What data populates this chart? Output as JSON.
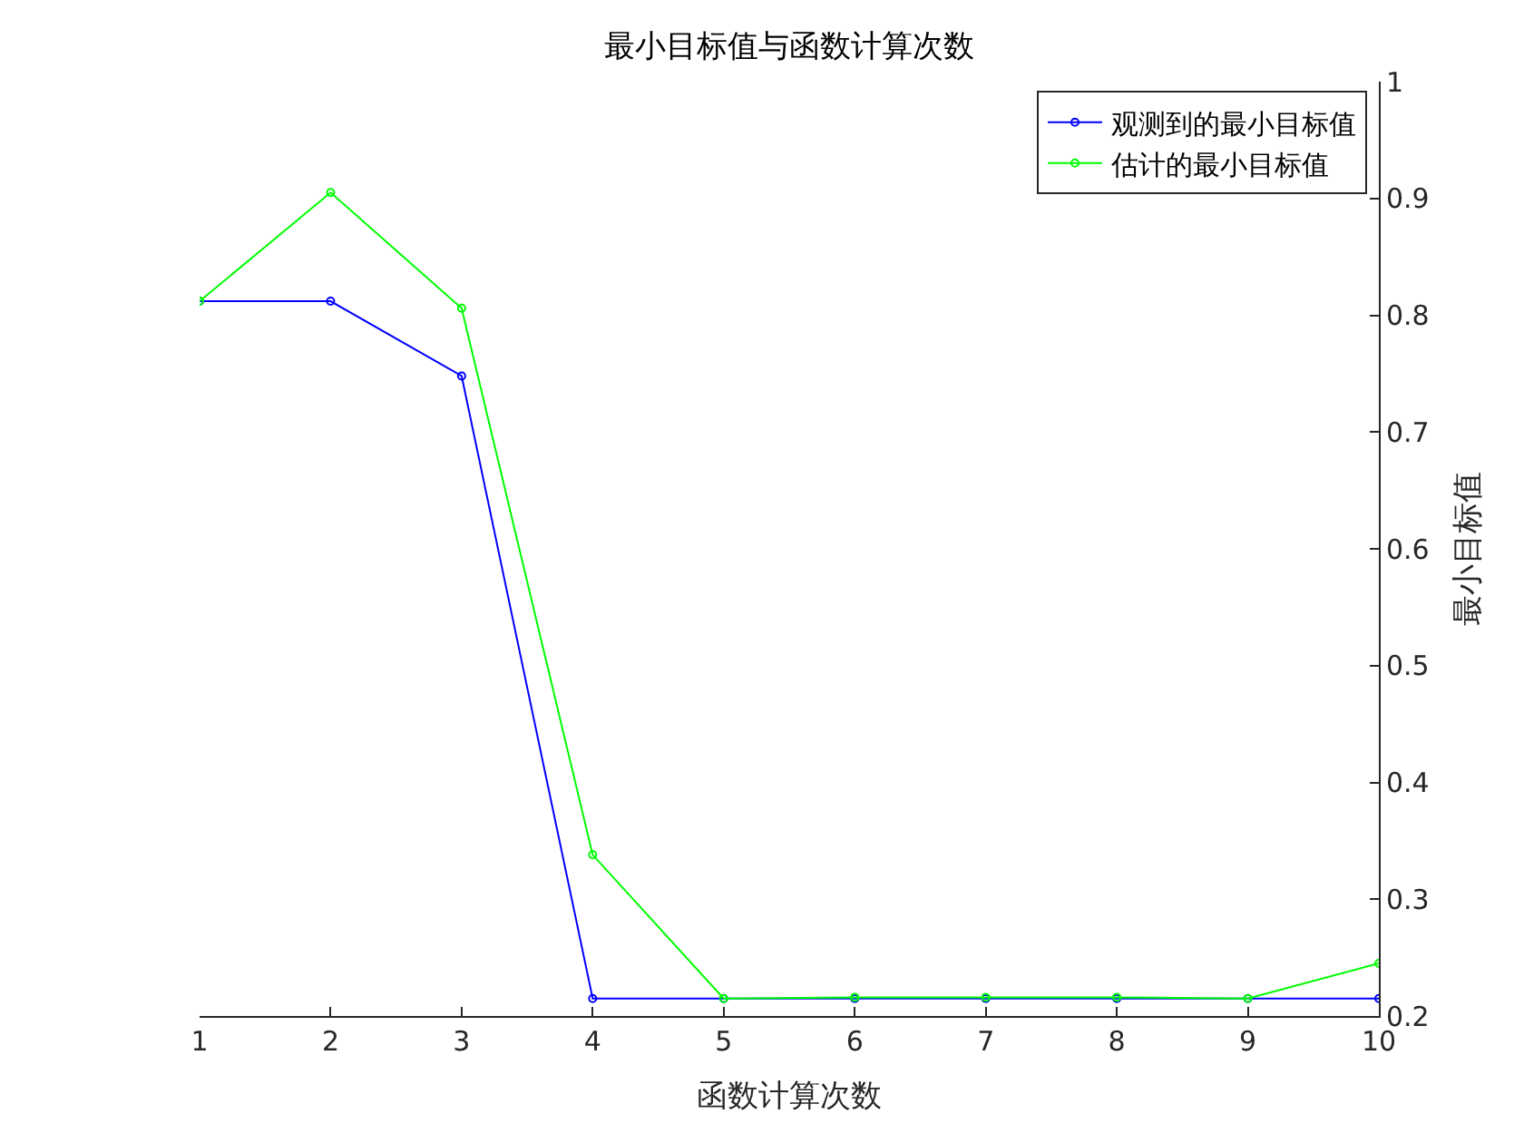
{
  "chart_data": {
    "type": "line",
    "title": "最小目标值与函数计算次数",
    "xlabel": "函数计算次数",
    "ylabel": "最小目标值",
    "x": [
      1,
      2,
      3,
      4,
      5,
      6,
      7,
      8,
      9,
      10
    ],
    "series": [
      {
        "name": "观测到的最小目标值",
        "color": "#0000ff",
        "values": [
          0.812,
          0.812,
          0.748,
          0.215,
          0.215,
          0.215,
          0.215,
          0.215,
          0.215,
          0.215
        ]
      },
      {
        "name": "估计的最小目标值",
        "color": "#00ff00",
        "values": [
          0.812,
          0.905,
          0.806,
          0.338,
          0.215,
          0.216,
          0.216,
          0.216,
          0.215,
          0.245
        ]
      }
    ],
    "xlim": [
      1,
      10
    ],
    "xticks": [
      1,
      2,
      3,
      4,
      5,
      6,
      7,
      8,
      9,
      10
    ],
    "ylim": [
      0.2,
      1
    ],
    "yticks": [
      0.2,
      0.3,
      0.4,
      0.5,
      0.6,
      0.7,
      0.8,
      0.9,
      1
    ],
    "grid": false,
    "legend": "top right",
    "marker": "circle",
    "line_style": "solid"
  }
}
